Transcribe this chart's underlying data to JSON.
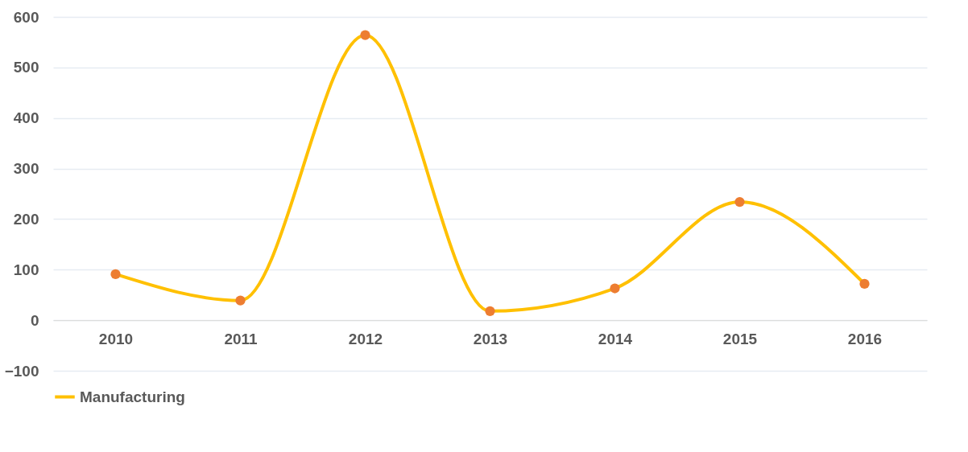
{
  "chart_data": {
    "type": "line",
    "categories": [
      "2010",
      "2011",
      "2012",
      "2013",
      "2014",
      "2015",
      "2016"
    ],
    "series": [
      {
        "name": "Manufacturing",
        "color": "#ffc000",
        "values": [
          91,
          39,
          564,
          18,
          63,
          234,
          72
        ]
      }
    ],
    "ylim": [
      -100,
      600
    ],
    "yticks": [
      -100,
      0,
      100,
      200,
      300,
      400,
      500,
      600
    ],
    "grid": "y",
    "legend": "bottom",
    "marker": "circle",
    "line_style": "solid"
  }
}
